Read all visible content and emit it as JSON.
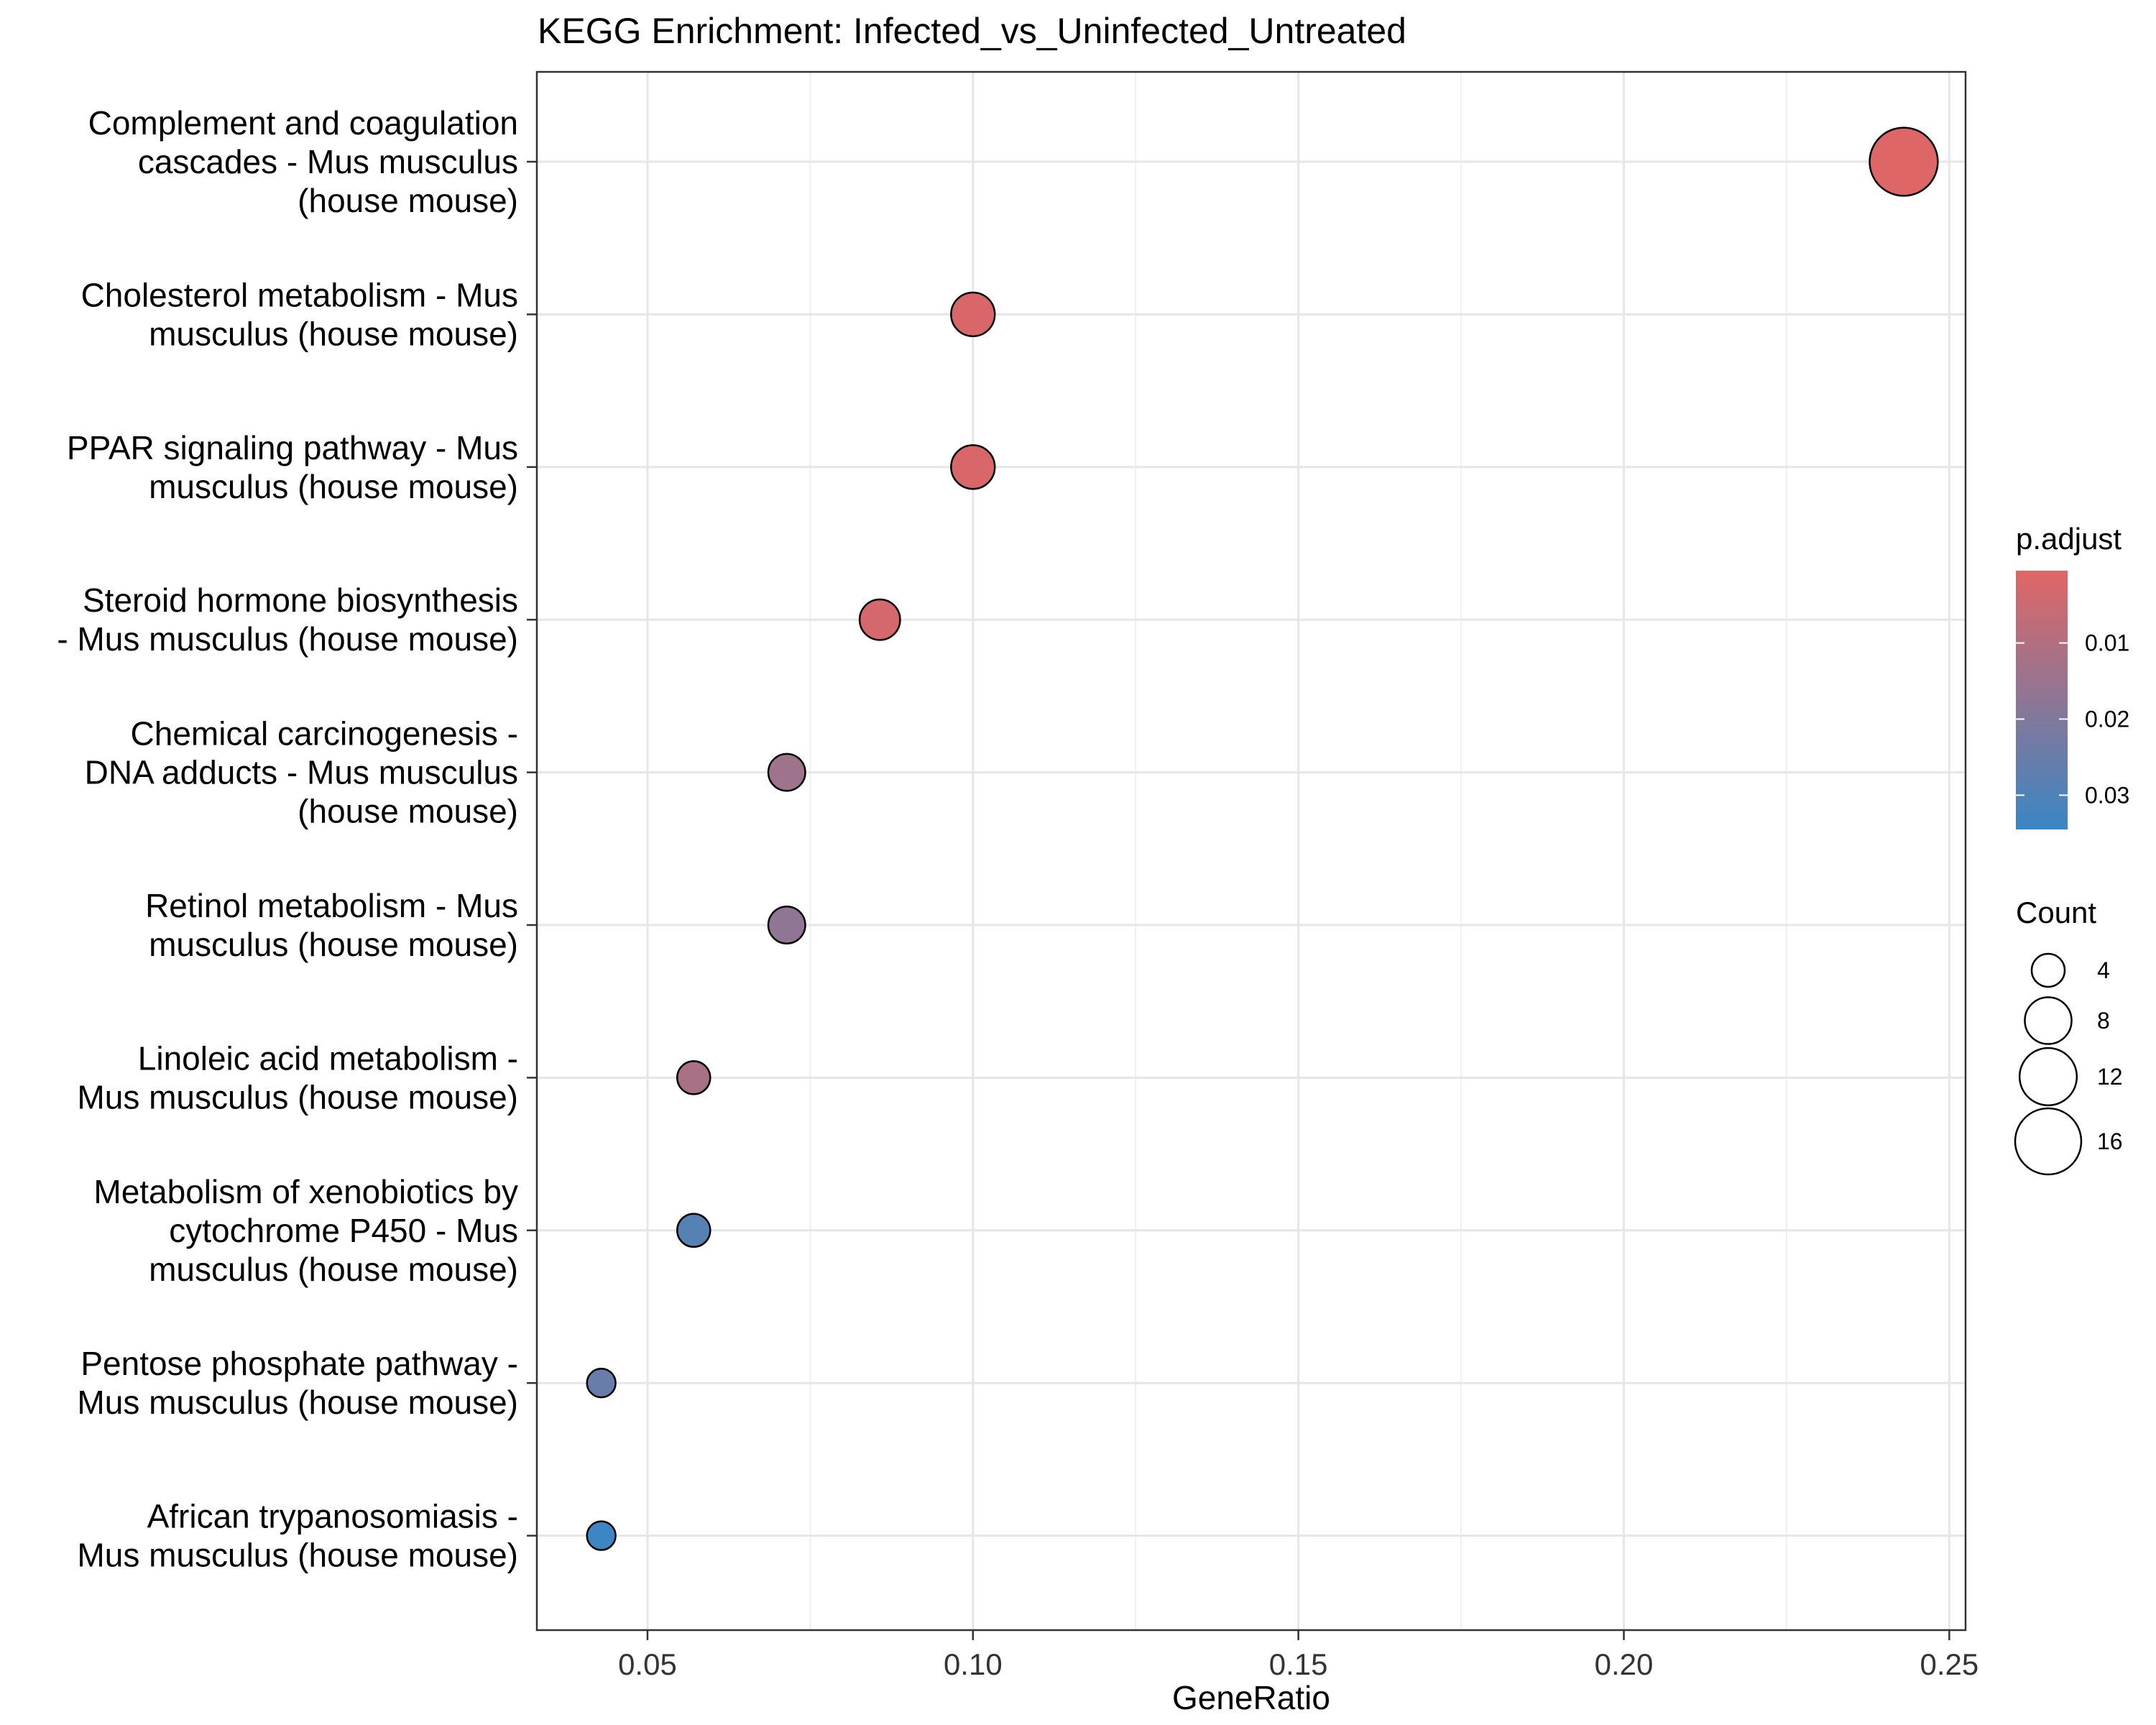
{
  "chart_data": {
    "type": "scatter",
    "title": "KEGG Enrichment: Infected_vs_Uninfected_Untreated",
    "xlabel": "GeneRatio",
    "ylabel": "",
    "xlim": [
      0.033,
      0.2525
    ],
    "x_ticks": [
      "0.05",
      "0.10",
      "0.15",
      "0.20",
      "0.25"
    ],
    "x_tick_values": [
      0.05,
      0.1,
      0.15,
      0.2,
      0.25
    ],
    "grid": true,
    "categories": [
      "Complement and coagulation cascades - Mus musculus (house mouse)",
      "Cholesterol metabolism - Mus musculus (house mouse)",
      "PPAR signaling pathway - Mus musculus (house mouse)",
      "Steroid hormone biosynthesis - Mus musculus (house mouse)",
      "Chemical carcinogenesis - DNA adducts - Mus musculus (house mouse)",
      "Retinol metabolism - Mus musculus (house mouse)",
      "Linoleic acid metabolism - Mus musculus (house mouse)",
      "Metabolism of xenobiotics by cytochrome P450 - Mus musculus (house mouse)",
      "Pentose phosphate pathway - Mus musculus (house mouse)",
      "African trypanosomiasis - Mus musculus (house mouse)"
    ],
    "category_lines": [
      [
        "Complement and coagulation",
        "cascades - Mus musculus",
        "(house mouse)"
      ],
      [
        "Cholesterol metabolism - Mus",
        "musculus (house mouse)"
      ],
      [
        "PPAR signaling pathway - Mus",
        "musculus (house mouse)"
      ],
      [
        "Steroid hormone biosynthesis",
        "- Mus musculus (house mouse)"
      ],
      [
        "Chemical carcinogenesis -",
        "DNA adducts - Mus musculus",
        "(house mouse)"
      ],
      [
        "Retinol metabolism - Mus",
        "musculus (house mouse)"
      ],
      [
        "Linoleic acid metabolism -",
        "Mus musculus (house mouse)"
      ],
      [
        "Metabolism of xenobiotics by",
        "cytochrome P450 - Mus",
        "musculus (house mouse)"
      ],
      [
        "Pentose phosphate pathway -",
        "Mus musculus (house mouse)"
      ],
      [
        "African trypanosomiasis -",
        "Mus musculus (house mouse)"
      ]
    ],
    "points": [
      {
        "gene_ratio": 0.243,
        "count": 17,
        "p_adjust": 0.001
      },
      {
        "gene_ratio": 0.1,
        "count": 7,
        "p_adjust": 0.002
      },
      {
        "gene_ratio": 0.1,
        "count": 7,
        "p_adjust": 0.002
      },
      {
        "gene_ratio": 0.0857,
        "count": 6,
        "p_adjust": 0.003
      },
      {
        "gene_ratio": 0.0714,
        "count": 5,
        "p_adjust": 0.014
      },
      {
        "gene_ratio": 0.0714,
        "count": 5,
        "p_adjust": 0.017
      },
      {
        "gene_ratio": 0.0571,
        "count": 4,
        "p_adjust": 0.012
      },
      {
        "gene_ratio": 0.0571,
        "count": 4,
        "p_adjust": 0.029
      },
      {
        "gene_ratio": 0.0429,
        "count": 3,
        "p_adjust": 0.025
      },
      {
        "gene_ratio": 0.0429,
        "count": 3,
        "p_adjust": 0.034
      }
    ],
    "color_legend": {
      "title": "p.adjust",
      "range": [
        0.0005,
        0.0345
      ],
      "ticks": [
        "0.01",
        "0.02",
        "0.03"
      ],
      "tick_values": [
        0.01,
        0.02,
        0.03
      ],
      "low_color": "#e06666",
      "high_color": "#3a86c4"
    },
    "size_legend": {
      "title": "Count",
      "labels": [
        "4",
        "8",
        "12",
        "16"
      ],
      "values": [
        4,
        8,
        12,
        16
      ]
    },
    "legend_position": "right"
  }
}
